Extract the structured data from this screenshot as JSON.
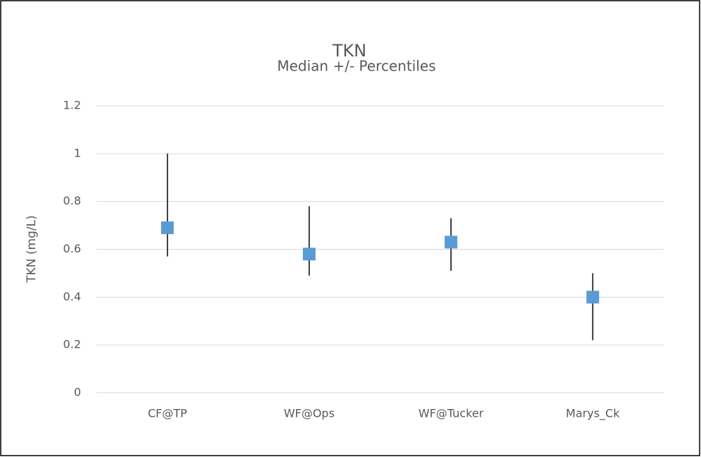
{
  "chart_data": {
    "type": "errorbar",
    "title": "TKN",
    "subtitle": "Median +/- Percentiles",
    "y_label": "TKN (mg/L)",
    "categories": [
      "CF@TP",
      "WF@Ops",
      "WF@Tucker",
      "Marys_Ck"
    ],
    "values": [
      0.69,
      0.58,
      0.63,
      0.4
    ],
    "upper": [
      1.0,
      0.78,
      0.73,
      0.5
    ],
    "lower": [
      0.57,
      0.49,
      0.51,
      0.22
    ],
    "color": "#5b9bd5",
    "error_color": "#000000",
    "ylim": [
      0,
      1.2
    ],
    "yticks": [
      0,
      0.2,
      0.4,
      0.6,
      0.8,
      1,
      1.2
    ],
    "grid": true
  }
}
